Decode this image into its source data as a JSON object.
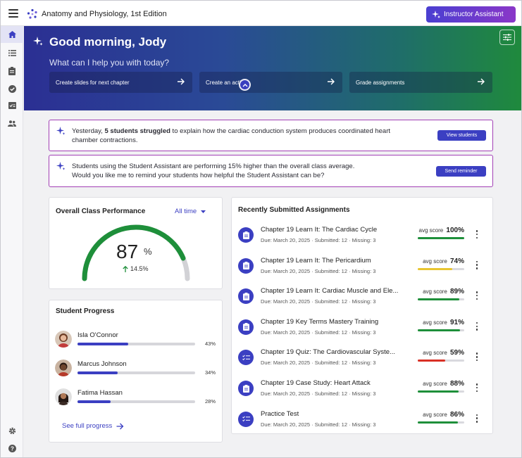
{
  "app": {
    "title": "Anatomy and Physiology, 1st Edition",
    "assistant_button": "Instructor Assistant"
  },
  "icons": {
    "menu": "menu-icon",
    "logo": "sparkle-logo-icon",
    "rail": [
      "home-icon",
      "list-icon",
      "clipboard-icon",
      "check-circle-icon",
      "grade-icon",
      "people-icon"
    ],
    "rail_bottom": [
      "gear-icon",
      "help-icon"
    ]
  },
  "hero": {
    "greeting": "Good morning, Jody",
    "prompt": "What can I help you with today?",
    "actions": [
      {
        "label": "Create slides for next chapter"
      },
      {
        "label": "Create an activity"
      },
      {
        "label": "Grade assignments"
      }
    ]
  },
  "alerts": [
    {
      "prefix": "Yesterday, ",
      "bold": "5 students struggled",
      "suffix": " to explain how the cardiac conduction system produces coordinated heart chamber contractions.",
      "button": "View students"
    },
    {
      "line1": "Students using the Student Assistant are performing 15% higher than the overall class average.",
      "line2": "Would you like me to remind your students how helpful the Student Assistant can be?",
      "button": "Send reminder"
    }
  ],
  "performance": {
    "title": "Overall Class Performance",
    "filter": "All time",
    "value": "87",
    "unit": "%",
    "delta": "14.5%",
    "fraction": 0.87,
    "color": "#1e8f3a"
  },
  "progress": {
    "title": "Student Progress",
    "students": [
      {
        "name": "Isla O'Connor",
        "pct": "43%",
        "value": 0.43
      },
      {
        "name": "Marcus Johnson",
        "pct": "34%",
        "value": 0.34
      },
      {
        "name": "Fatima Hassan",
        "pct": "28%",
        "value": 0.28
      }
    ],
    "link": "See full progress"
  },
  "assignments": {
    "title": "Recently Submitted Assignments",
    "score_label": "avg score",
    "items": [
      {
        "title": "Chapter 19 Learn It: The Cardiac Cycle",
        "due": "Due: March 20, 2025",
        "submitted": "Submitted: 12",
        "missing": "Missing: 3",
        "score": "100%",
        "value": 1.0,
        "color": "#1e8f3a",
        "icon": "clipboard-icon"
      },
      {
        "title": "Chapter 19 Learn It: The Pericardium",
        "due": "Due: March 20, 2025",
        "submitted": "Submitted: 12",
        "missing": "Missing: 3",
        "score": "74%",
        "value": 0.74,
        "color": "#e8c530",
        "icon": "clipboard-icon"
      },
      {
        "title": "Chapter 19 Learn It: Cardiac Muscle and Ele...",
        "due": "Due: March 20, 2025",
        "submitted": "Submitted: 12",
        "missing": "Missing: 3",
        "score": "89%",
        "value": 0.89,
        "color": "#1e8f3a",
        "icon": "clipboard-icon"
      },
      {
        "title": "Chapter 19 Key Terms Mastery Training",
        "due": "Due: March 20, 2025",
        "submitted": "Submitted: 12",
        "missing": "Missing: 3",
        "score": "91%",
        "value": 0.91,
        "color": "#1e8f3a",
        "icon": "clipboard-icon"
      },
      {
        "title": "Chapter 19 Quiz: The Cardiovascular Syste...",
        "due": "Due: March 20, 2025",
        "submitted": "Submitted: 12",
        "missing": "Missing: 3",
        "score": "59%",
        "value": 0.59,
        "color": "#d93025",
        "icon": "checklist-icon"
      },
      {
        "title": "Chapter 19 Case Study: Heart Attack",
        "due": "Due: March 20, 2025",
        "submitted": "Submitted: 12",
        "missing": "Missing: 3",
        "score": "88%",
        "value": 0.88,
        "color": "#1e8f3a",
        "icon": "clipboard-icon"
      },
      {
        "title": "Practice Test",
        "due": "Due: March 20, 2025",
        "submitted": "Submitted: 12",
        "missing": "Missing: 3",
        "score": "86%",
        "value": 0.86,
        "color": "#1e8f3a",
        "icon": "checklist-icon"
      }
    ]
  }
}
